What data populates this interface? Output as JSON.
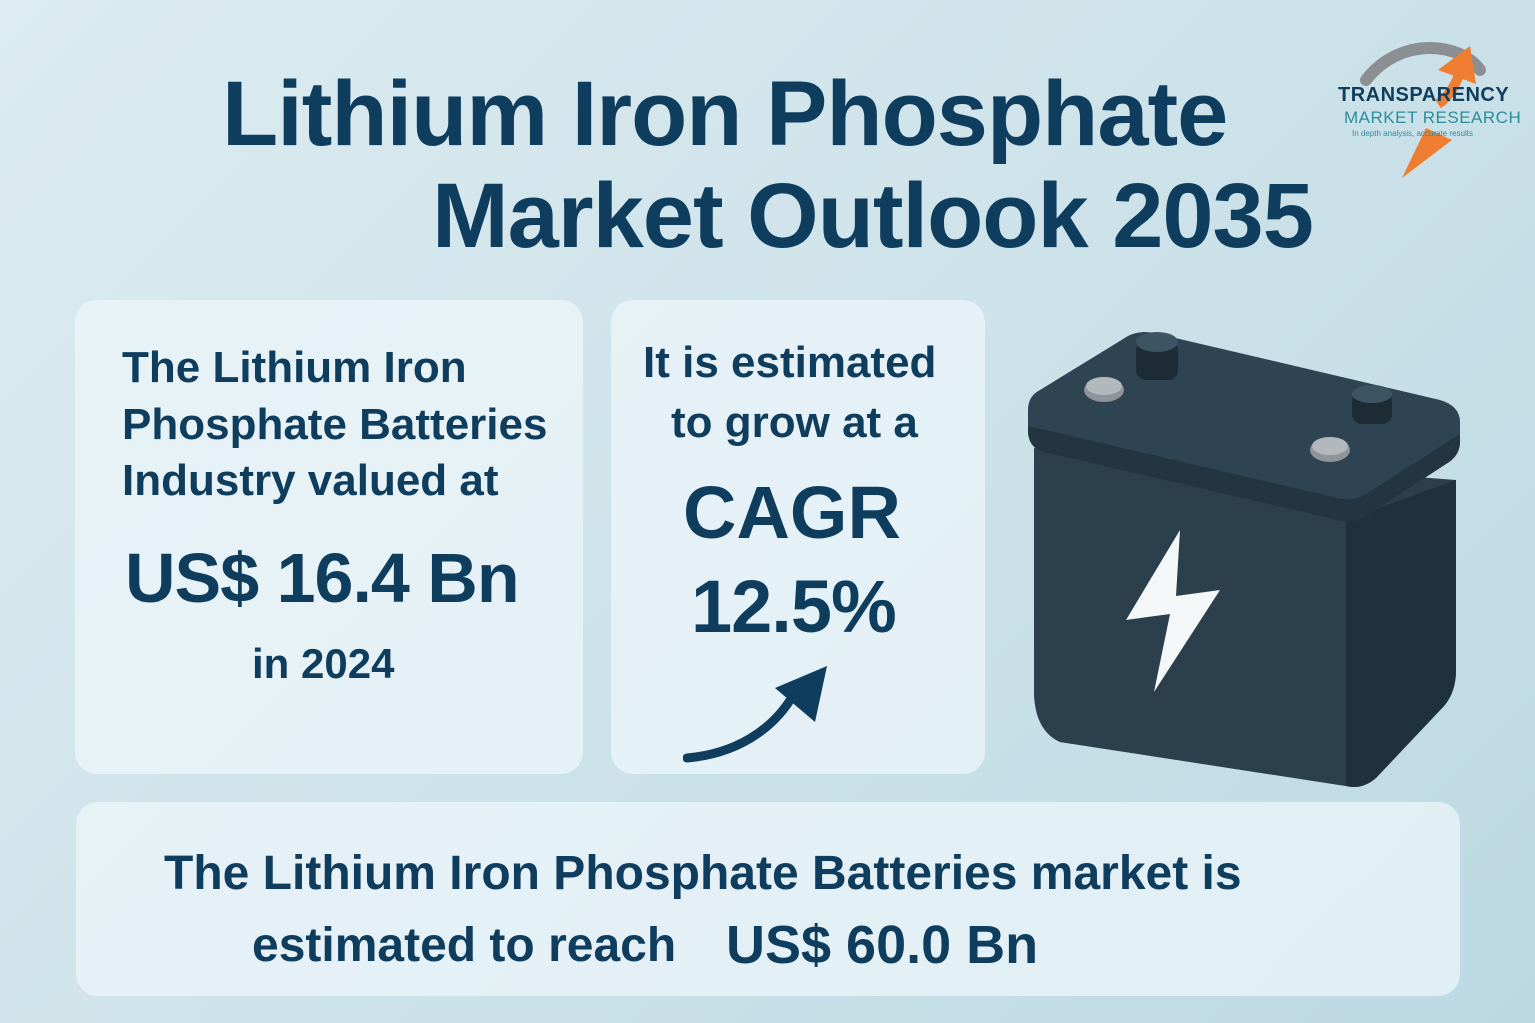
{
  "header": {
    "title_line1": "Lithium Iron Phosphate",
    "title_line2": "Market Outlook 2035"
  },
  "logo": {
    "brand": "TRANSPARENCY",
    "subtitle": "MARKET RESEARCH",
    "tagline": "In depth analysis, accurate results"
  },
  "card_left": {
    "line1": "The Lithium Iron",
    "line2": "Phosphate Batteries",
    "line3": "Industry valued at",
    "value": "US$ 16.4 Bn",
    "year": "in 2024"
  },
  "card_mid": {
    "line1": "It is estimated",
    "line2": "to grow at a",
    "cagr_label": "CAGR",
    "cagr_value": "12.5%"
  },
  "card_bottom": {
    "line1": "The Lithium Iron Phosphate Batteries market is",
    "line2": "estimated to reach",
    "value": "US$ 60.0 Bn"
  },
  "icons": [
    "transparency-logo-icon",
    "growth-arrow-icon",
    "battery-icon",
    "lightning-bolt-icon"
  ],
  "colors": {
    "text": "#0f3d5e",
    "battery": "#2b3f4c",
    "logo_orange": "#ef7d32",
    "logo_teal": "#2a8e9b"
  }
}
